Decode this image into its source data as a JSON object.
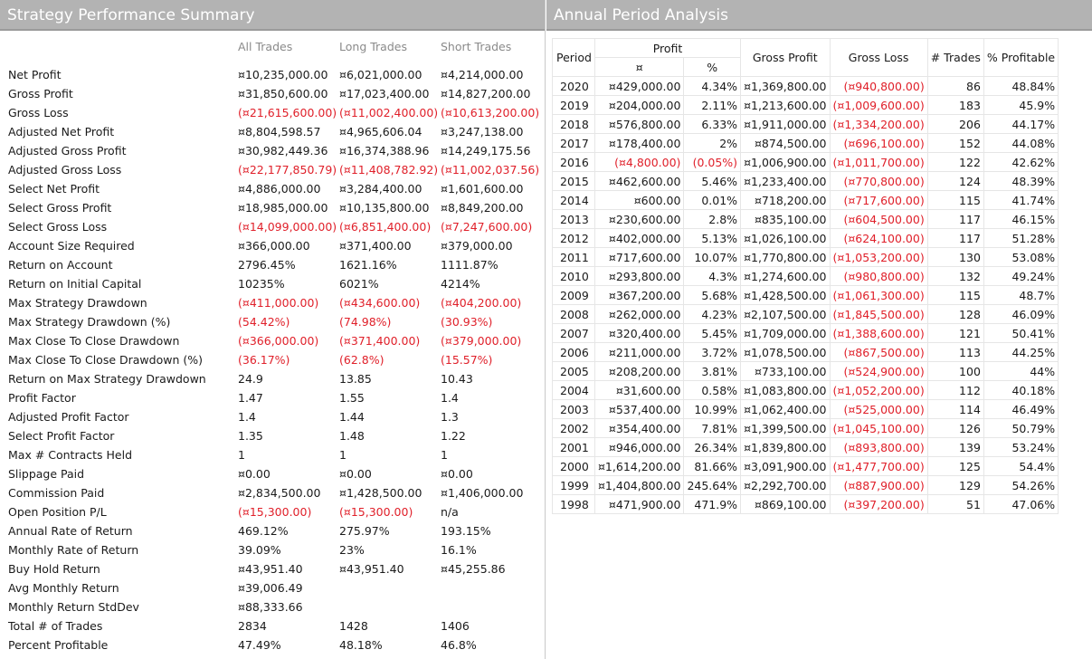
{
  "left": {
    "title": "Strategy Performance Summary",
    "headers": [
      "All Trades",
      "Long Trades",
      "Short Trades"
    ],
    "rows": [
      {
        "label": "Net Profit",
        "values": [
          "¤10,235,000.00",
          "¤6,021,000.00",
          "¤4,214,000.00"
        ]
      },
      {
        "label": "Gross Profit",
        "values": [
          "¤31,850,600.00",
          "¤17,023,400.00",
          "¤14,827,200.00"
        ]
      },
      {
        "label": "Gross Loss",
        "values": [
          "(¤21,615,600.00)",
          "(¤11,002,400.00)",
          "(¤10,613,200.00)"
        ]
      },
      {
        "label": "Adjusted Net Profit",
        "values": [
          "¤8,804,598.57",
          "¤4,965,606.04",
          "¤3,247,138.00"
        ]
      },
      {
        "label": "Adjusted Gross Profit",
        "values": [
          "¤30,982,449.36",
          "¤16,374,388.96",
          "¤14,249,175.56"
        ]
      },
      {
        "label": "Adjusted Gross Loss",
        "values": [
          "(¤22,177,850.79)",
          "(¤11,408,782.92)",
          "(¤11,002,037.56)"
        ]
      },
      {
        "label": "Select Net Profit",
        "values": [
          "¤4,886,000.00",
          "¤3,284,400.00",
          "¤1,601,600.00"
        ]
      },
      {
        "label": "Select Gross Profit",
        "values": [
          "¤18,985,000.00",
          "¤10,135,800.00",
          "¤8,849,200.00"
        ]
      },
      {
        "label": "Select Gross Loss",
        "values": [
          "(¤14,099,000.00)",
          "(¤6,851,400.00)",
          "(¤7,247,600.00)"
        ]
      },
      {
        "label": "Account Size Required",
        "values": [
          "¤366,000.00",
          "¤371,400.00",
          "¤379,000.00"
        ]
      },
      {
        "label": "Return on Account",
        "values": [
          "2796.45%",
          "1621.16%",
          "1111.87%"
        ]
      },
      {
        "label": "Return on Initial Capital",
        "values": [
          "10235%",
          "6021%",
          "4214%"
        ]
      },
      {
        "label": "Max Strategy Drawdown",
        "values": [
          "(¤411,000.00)",
          "(¤434,600.00)",
          "(¤404,200.00)"
        ]
      },
      {
        "label": "Max Strategy Drawdown (%)",
        "values": [
          "(54.42%)",
          "(74.98%)",
          "(30.93%)"
        ]
      },
      {
        "label": "Max Close To Close Drawdown",
        "values": [
          "(¤366,000.00)",
          "(¤371,400.00)",
          "(¤379,000.00)"
        ]
      },
      {
        "label": "Max Close To Close Drawdown (%)",
        "values": [
          "(36.17%)",
          "(62.8%)",
          "(15.57%)"
        ]
      },
      {
        "label": "Return on Max Strategy Drawdown",
        "values": [
          "24.9",
          "13.85",
          "10.43"
        ]
      },
      {
        "label": "Profit Factor",
        "values": [
          "1.47",
          "1.55",
          "1.4"
        ]
      },
      {
        "label": "Adjusted Profit Factor",
        "values": [
          "1.4",
          "1.44",
          "1.3"
        ]
      },
      {
        "label": "Select Profit Factor",
        "values": [
          "1.35",
          "1.48",
          "1.22"
        ]
      },
      {
        "label": "Max # Contracts Held",
        "values": [
          "1",
          "1",
          "1"
        ]
      },
      {
        "label": "Slippage Paid",
        "values": [
          "¤0.00",
          "¤0.00",
          "¤0.00"
        ]
      },
      {
        "label": "Commission Paid",
        "values": [
          "¤2,834,500.00",
          "¤1,428,500.00",
          "¤1,406,000.00"
        ]
      },
      {
        "label": "Open Position P/L",
        "values": [
          "(¤15,300.00)",
          "(¤15,300.00)",
          "n/a"
        ]
      },
      {
        "label": "Annual Rate of Return",
        "values": [
          "469.12%",
          "275.97%",
          "193.15%"
        ]
      },
      {
        "label": "Monthly Rate of Return",
        "values": [
          "39.09%",
          "23%",
          "16.1%"
        ]
      },
      {
        "label": "Buy  Hold Return",
        "values": [
          "¤43,951.40",
          "¤43,951.40",
          "¤45,255.86"
        ]
      },
      {
        "label": "Avg Monthly Return",
        "values": [
          "¤39,006.49",
          "",
          ""
        ]
      },
      {
        "label": "Monthly Return StdDev",
        "values": [
          "¤88,333.66",
          "",
          ""
        ]
      },
      {
        "label": "Total # of Trades",
        "values": [
          "2834",
          "1428",
          "1406"
        ]
      },
      {
        "label": "Percent Profitable",
        "values": [
          "47.49%",
          "48.18%",
          "46.8%"
        ]
      }
    ]
  },
  "right": {
    "title": "Annual Period Analysis",
    "headers": {
      "period": "Period",
      "profit": "Profit",
      "profit_currency": "¤",
      "profit_pct": "%",
      "gross_profit": "Gross Profit",
      "gross_loss": "Gross Loss",
      "trades": "# Trades",
      "pct_profitable": "% Profitable"
    },
    "rows": [
      [
        "2020",
        "¤429,000.00",
        "4.34%",
        "¤1,369,800.00",
        "(¤940,800.00)",
        "86",
        "48.84%"
      ],
      [
        "2019",
        "¤204,000.00",
        "2.11%",
        "¤1,213,600.00",
        "(¤1,009,600.00)",
        "183",
        "45.9%"
      ],
      [
        "2018",
        "¤576,800.00",
        "6.33%",
        "¤1,911,000.00",
        "(¤1,334,200.00)",
        "206",
        "44.17%"
      ],
      [
        "2017",
        "¤178,400.00",
        "2%",
        "¤874,500.00",
        "(¤696,100.00)",
        "152",
        "44.08%"
      ],
      [
        "2016",
        "(¤4,800.00)",
        "(0.05%)",
        "¤1,006,900.00",
        "(¤1,011,700.00)",
        "122",
        "42.62%"
      ],
      [
        "2015",
        "¤462,600.00",
        "5.46%",
        "¤1,233,400.00",
        "(¤770,800.00)",
        "124",
        "48.39%"
      ],
      [
        "2014",
        "¤600.00",
        "0.01%",
        "¤718,200.00",
        "(¤717,600.00)",
        "115",
        "41.74%"
      ],
      [
        "2013",
        "¤230,600.00",
        "2.8%",
        "¤835,100.00",
        "(¤604,500.00)",
        "117",
        "46.15%"
      ],
      [
        "2012",
        "¤402,000.00",
        "5.13%",
        "¤1,026,100.00",
        "(¤624,100.00)",
        "117",
        "51.28%"
      ],
      [
        "2011",
        "¤717,600.00",
        "10.07%",
        "¤1,770,800.00",
        "(¤1,053,200.00)",
        "130",
        "53.08%"
      ],
      [
        "2010",
        "¤293,800.00",
        "4.3%",
        "¤1,274,600.00",
        "(¤980,800.00)",
        "132",
        "49.24%"
      ],
      [
        "2009",
        "¤367,200.00",
        "5.68%",
        "¤1,428,500.00",
        "(¤1,061,300.00)",
        "115",
        "48.7%"
      ],
      [
        "2008",
        "¤262,000.00",
        "4.23%",
        "¤2,107,500.00",
        "(¤1,845,500.00)",
        "128",
        "46.09%"
      ],
      [
        "2007",
        "¤320,400.00",
        "5.45%",
        "¤1,709,000.00",
        "(¤1,388,600.00)",
        "121",
        "50.41%"
      ],
      [
        "2006",
        "¤211,000.00",
        "3.72%",
        "¤1,078,500.00",
        "(¤867,500.00)",
        "113",
        "44.25%"
      ],
      [
        "2005",
        "¤208,200.00",
        "3.81%",
        "¤733,100.00",
        "(¤524,900.00)",
        "100",
        "44%"
      ],
      [
        "2004",
        "¤31,600.00",
        "0.58%",
        "¤1,083,800.00",
        "(¤1,052,200.00)",
        "112",
        "40.18%"
      ],
      [
        "2003",
        "¤537,400.00",
        "10.99%",
        "¤1,062,400.00",
        "(¤525,000.00)",
        "114",
        "46.49%"
      ],
      [
        "2002",
        "¤354,400.00",
        "7.81%",
        "¤1,399,500.00",
        "(¤1,045,100.00)",
        "126",
        "50.79%"
      ],
      [
        "2001",
        "¤946,000.00",
        "26.34%",
        "¤1,839,800.00",
        "(¤893,800.00)",
        "139",
        "53.24%"
      ],
      [
        "2000",
        "¤1,614,200.00",
        "81.66%",
        "¤3,091,900.00",
        "(¤1,477,700.00)",
        "125",
        "54.4%"
      ],
      [
        "1999",
        "¤1,404,800.00",
        "245.64%",
        "¤2,292,700.00",
        "(¤887,900.00)",
        "129",
        "54.26%"
      ],
      [
        "1998",
        "¤471,900.00",
        "471.9%",
        "¤869,100.00",
        "(¤397,200.00)",
        "51",
        "47.06%"
      ]
    ]
  },
  "colors": {
    "title_bar": "#b3b3b3",
    "negative": "#e0202a",
    "header_text": "#8a8a8a"
  }
}
